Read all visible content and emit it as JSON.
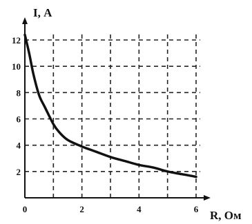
{
  "chart_data": {
    "type": "line",
    "title": "",
    "xlabel": "R, Ом",
    "ylabel": "I, А",
    "xlim": [
      0,
      6
    ],
    "ylim": [
      0,
      12
    ],
    "x_ticks": [
      0,
      2,
      4,
      6
    ],
    "x_tick_labels": [
      "0",
      "2",
      "4",
      "6"
    ],
    "y_ticks": [
      2,
      4,
      6,
      8,
      10,
      12
    ],
    "y_tick_labels": [
      "2",
      "4",
      "6",
      "8",
      "10",
      "12"
    ],
    "grid": true,
    "grid_style": "dashed",
    "colors": {
      "line": "#111111",
      "axes": "#111111",
      "grid": "#222222"
    },
    "series": [
      {
        "x": [
          0.0,
          0.15,
          0.3,
          0.5,
          0.7,
          1.0,
          1.2,
          1.5,
          2.0,
          2.5,
          3.0,
          3.5,
          4.0,
          4.5,
          5.0,
          5.5,
          6.0
        ],
        "values": [
          12.4,
          11.0,
          9.4,
          7.8,
          6.9,
          5.6,
          5.0,
          4.4,
          3.9,
          3.5,
          3.1,
          2.8,
          2.5,
          2.3,
          2.0,
          1.8,
          1.6
        ]
      }
    ]
  }
}
